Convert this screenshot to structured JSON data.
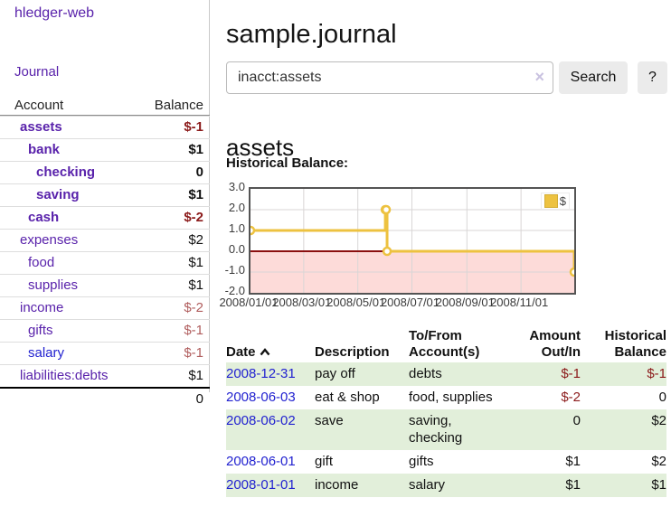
{
  "colors": {
    "brand_purple": "#5922ab",
    "link_blue": "#2222d0",
    "negative_strong": "#8b1a1a",
    "negative_soft": "#b05d5d",
    "row_green": "#e2efda",
    "series_yellow": "#edc240",
    "negative_area_pink": "#fddbd9",
    "zero_line_red": "#8b0f0f",
    "chart_border": "#545454"
  },
  "sidebar": {
    "brand": "hledger-web",
    "journal_link": "Journal",
    "accounts": {
      "header": {
        "account": "Account",
        "balance": "Balance"
      },
      "rows": [
        {
          "name": "assets",
          "balance": "$-1"
        },
        {
          "name": "bank",
          "balance": "$1"
        },
        {
          "name": "checking",
          "balance": "0"
        },
        {
          "name": "saving",
          "balance": "$1"
        },
        {
          "name": "cash",
          "balance": "$-2"
        },
        {
          "name": "expenses",
          "balance": "$2"
        },
        {
          "name": "food",
          "balance": "$1"
        },
        {
          "name": "supplies",
          "balance": "$1"
        },
        {
          "name": "income",
          "balance": "$-2"
        },
        {
          "name": "gifts",
          "balance": "$-1"
        },
        {
          "name": "salary",
          "balance": "$-1"
        },
        {
          "name": "liabilities:debts",
          "balance": "$1"
        }
      ],
      "total": "0"
    }
  },
  "header": {
    "title": "sample.journal"
  },
  "search": {
    "value": "inacct:assets",
    "clear_icon": "×",
    "button_label": "Search",
    "help_label": "?"
  },
  "account_page": {
    "heading": "assets",
    "section_label": "Historical Balance:"
  },
  "chart_data": {
    "type": "line",
    "step": true,
    "title": "Historical Balance",
    "xlim": [
      "2008-01-01",
      "2008-12-31"
    ],
    "ylim": [
      -2,
      3
    ],
    "grid": true,
    "legend_position": "top-right",
    "x_ticks": [
      {
        "date": "2008-01-01",
        "label": "2008/01/01"
      },
      {
        "date": "2008-03-01",
        "label": "2008/03/01"
      },
      {
        "date": "2008-05-01",
        "label": "2008/05/01"
      },
      {
        "date": "2008-07-01",
        "label": "2008/07/01"
      },
      {
        "date": "2008-09-01",
        "label": "2008/09/01"
      },
      {
        "date": "2008-11-01",
        "label": "2008/11/01"
      }
    ],
    "y_ticks": [
      {
        "value": 3,
        "label": "3.0"
      },
      {
        "value": 2,
        "label": "2.0"
      },
      {
        "value": 1,
        "label": "1.0"
      },
      {
        "value": 0,
        "label": "0.0"
      },
      {
        "value": -1,
        "label": "-1.0"
      },
      {
        "value": -2,
        "label": "-2.0"
      }
    ],
    "series": [
      {
        "name": "$",
        "points": [
          {
            "x": "2008-01-01",
            "y": 1
          },
          {
            "x": "2008-06-01",
            "y": 2
          },
          {
            "x": "2008-06-02",
            "y": 2
          },
          {
            "x": "2008-06-03",
            "y": 0
          },
          {
            "x": "2008-12-31",
            "y": -1
          }
        ]
      }
    ],
    "colors": {
      "series": "#edc240",
      "negative_area": "#fddbd9",
      "zero_line": "#8b0f0f"
    }
  },
  "register": {
    "headers": {
      "date": "Date",
      "description": "Description",
      "accounts": "To/From Account(s)",
      "amount": "Amount Out/In",
      "balance": "Historical Balance"
    },
    "rows": [
      {
        "date": "2008-12-31",
        "description": "pay off",
        "accounts": "debts",
        "amount": "$-1",
        "balance": "$-1"
      },
      {
        "date": "2008-06-03",
        "description": "eat & shop",
        "accounts": "food, supplies",
        "amount": "$-2",
        "balance": "0"
      },
      {
        "date": "2008-06-02",
        "description": "save",
        "accounts": "saving,\nchecking",
        "amount": "0",
        "balance": "$2"
      },
      {
        "date": "2008-06-01",
        "description": "gift",
        "accounts": "gifts",
        "amount": "$1",
        "balance": "$2"
      },
      {
        "date": "2008-01-01",
        "description": "income",
        "accounts": "salary",
        "amount": "$1",
        "balance": "$1"
      }
    ]
  }
}
